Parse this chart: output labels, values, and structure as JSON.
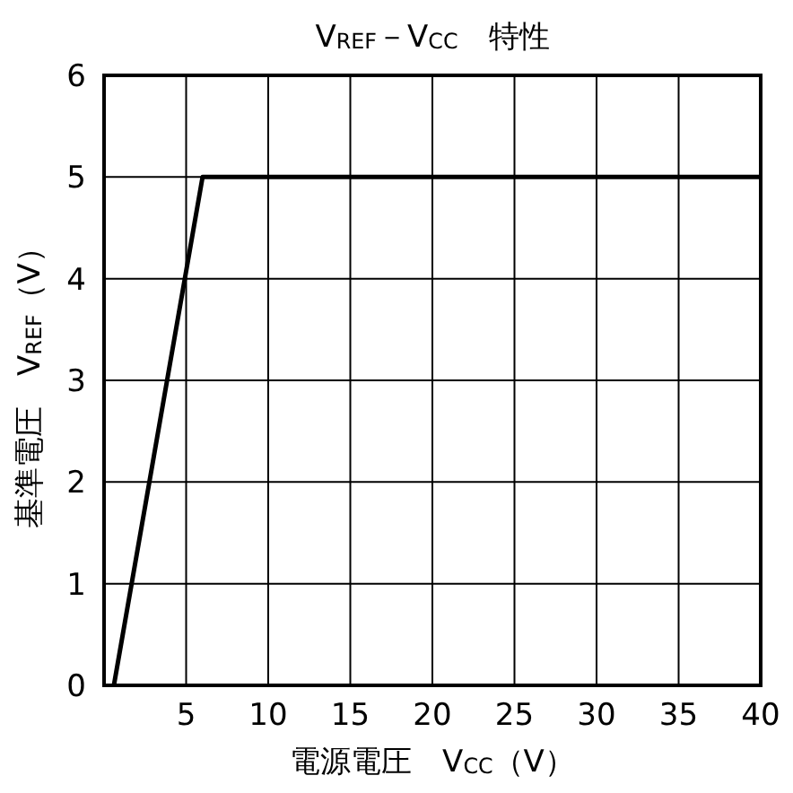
{
  "chart_data": {
    "type": "line",
    "title": "V$_{REF}$－V$_{CC}$　特性",
    "xlabel": "電源電圧　V$_{CC}$（V）",
    "ylabel": "基準電圧　V$_{REF}$（V）",
    "x": [
      0.6,
      6,
      40
    ],
    "series": [
      {
        "color": "#000000",
        "values": [
          0,
          5,
          5
        ]
      }
    ],
    "xlim": [
      0,
      40
    ],
    "xticks": [
      5,
      10,
      15,
      20,
      25,
      30,
      35,
      40
    ],
    "ylim": [
      0,
      6
    ],
    "yticks": [
      0,
      1,
      2,
      3,
      4,
      5,
      6
    ],
    "grid": true,
    "line_style": "solid",
    "marker": "none"
  }
}
